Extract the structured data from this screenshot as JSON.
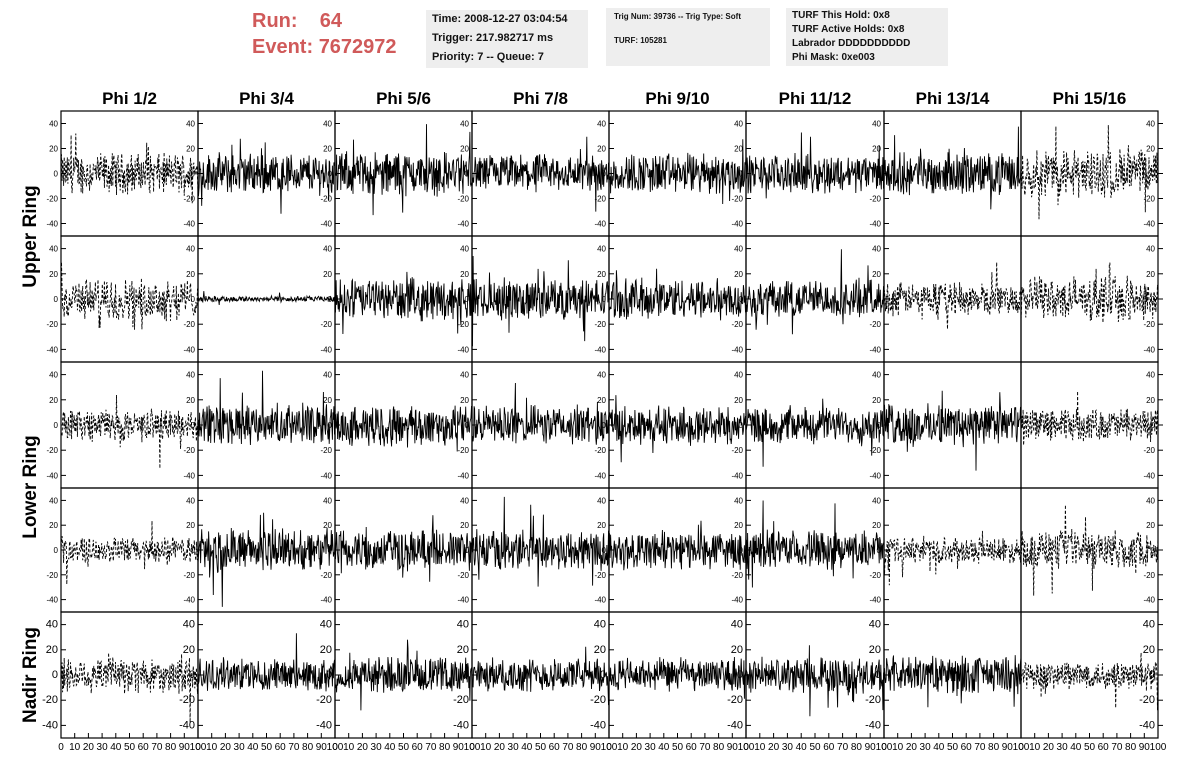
{
  "header": {
    "run_label": "Run:",
    "run_value": "64",
    "event_label": "Event:",
    "event_value": "7672972"
  },
  "info_box_1": [
    "Time: 2008-12-27 03:04:54",
    "Trigger: 217.982717 ms",
    "Priority: 7 -- Queue: 7"
  ],
  "info_box_2": [
    "Trig Num: 39736 -- Trig Type: Soft",
    "TURF: 105281"
  ],
  "info_box_3": [
    "TURF This Hold: 0x8",
    "TURF Active Holds: 0x8",
    "Labrador DDDDDDDDDD",
    "Phi Mask: 0xe003"
  ],
  "colors": {
    "header_red": "#d05a5a",
    "info_bg": "#eeeeee",
    "trace": "#000000"
  },
  "chart_data": {
    "type": "line",
    "columns": [
      "Phi 1/2",
      "Phi 3/4",
      "Phi 5/6",
      "Phi 7/8",
      "Phi 9/10",
      "Phi 11/12",
      "Phi 13/14",
      "Phi 15/16"
    ],
    "rows": [
      "Upper Ring",
      "Upper Ring",
      "Lower Ring",
      "Lower Ring",
      "Nadir Ring"
    ],
    "row_labels": [
      {
        "text": "Upper Ring",
        "spans_rows": [
          0,
          1
        ]
      },
      {
        "text": "Lower Ring",
        "spans_rows": [
          2,
          3
        ]
      },
      {
        "text": "Nadir Ring",
        "spans_rows": [
          4,
          4
        ]
      }
    ],
    "xlim": [
      0,
      100
    ],
    "ylim": [
      -50,
      50
    ],
    "x_ticks": [
      0,
      10,
      20,
      30,
      40,
      50,
      60,
      70,
      80,
      90,
      100
    ],
    "y_ticks": [
      -40,
      -20,
      0,
      20,
      40
    ],
    "grid": false,
    "n_samples": 260,
    "amplitude_pattern": [
      [
        14,
        14,
        15,
        13,
        14,
        13,
        14,
        17
      ],
      [
        14,
        2,
        14,
        14,
        14,
        13,
        11,
        15
      ],
      [
        11,
        14,
        14,
        13,
        13,
        12,
        14,
        11
      ],
      [
        9,
        15,
        14,
        14,
        13,
        13,
        9,
        13
      ],
      [
        13,
        11,
        12,
        11,
        11,
        12,
        13,
        10
      ]
    ],
    "trace_style": [
      [
        "dashed",
        "solid",
        "solid",
        "solid",
        "solid",
        "solid",
        "solid",
        "dashed"
      ],
      [
        "dashed",
        "solid",
        "solid",
        "solid",
        "solid",
        "solid",
        "dashed",
        "dashed"
      ],
      [
        "dashed",
        "solid",
        "solid",
        "solid",
        "solid",
        "solid",
        "solid",
        "dashed"
      ],
      [
        "dashed",
        "solid",
        "solid",
        "solid",
        "solid",
        "solid",
        "dashed",
        "dashed"
      ],
      [
        "dashed",
        "solid",
        "solid",
        "solid",
        "solid",
        "solid",
        "solid",
        "dashed"
      ]
    ]
  }
}
